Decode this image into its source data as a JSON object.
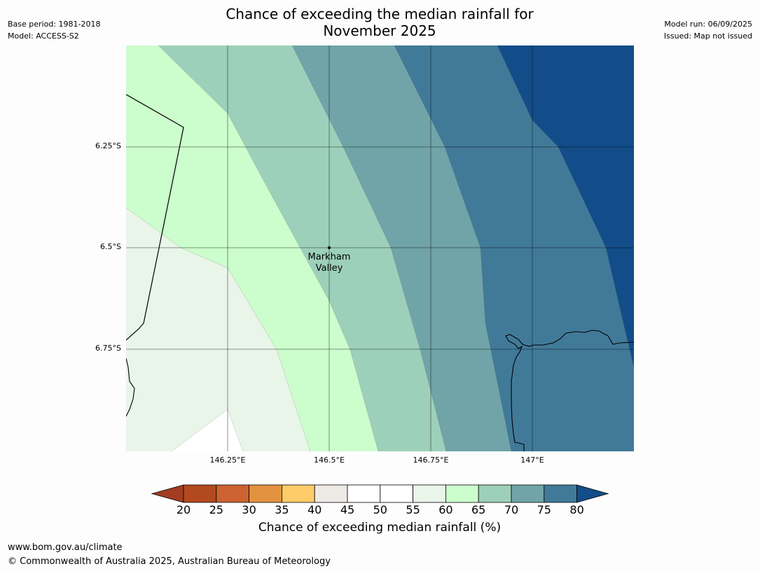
{
  "header": {
    "title_line1": "Chance of exceeding the median rainfall for",
    "title_line2": "November 2025",
    "base_period": "Base period: 1981-2018",
    "model": "Model: ACCESS-S2",
    "model_run": "Model run: 06/09/2025",
    "issued": "Issued: Map not issued"
  },
  "map": {
    "lat_labels": [
      "6.25°S",
      "6.5°S",
      "6.75°S"
    ],
    "lon_labels": [
      "146.25°E",
      "146.5°E",
      "146.75°E",
      "147°E"
    ],
    "place": {
      "line1": "Markham",
      "line2": "Valley"
    },
    "colors": {
      "40-45": "#ede9e5",
      "45-55": "#ffffff",
      "55-60": "#e9f5e9",
      "60-65": "#ccfdcc",
      "65-70": "#9dd0ba",
      "70-75": "#70a4a8",
      "75-80": "#417a99",
      "80+": "#134d89"
    }
  },
  "colorbar": {
    "ticks": [
      "20",
      "25",
      "30",
      "35",
      "40",
      "45",
      "50",
      "55",
      "60",
      "65",
      "70",
      "75",
      "80"
    ],
    "colors": [
      "#a33d21",
      "#b3491f",
      "#cc6330",
      "#e3923f",
      "#fdcb68",
      "#ede9e5",
      "#ffffff",
      "#ffffff",
      "#e9f5e9",
      "#ccfdcc",
      "#9dd0ba",
      "#70a4a8",
      "#417a99",
      "#134d89"
    ],
    "label": "Chance of exceeding median rainfall (%)"
  },
  "footer": {
    "url": "www.bom.gov.au/climate",
    "copyright": "© Commonwealth of Australia 2025, Australian Bureau of Meteorology"
  }
}
